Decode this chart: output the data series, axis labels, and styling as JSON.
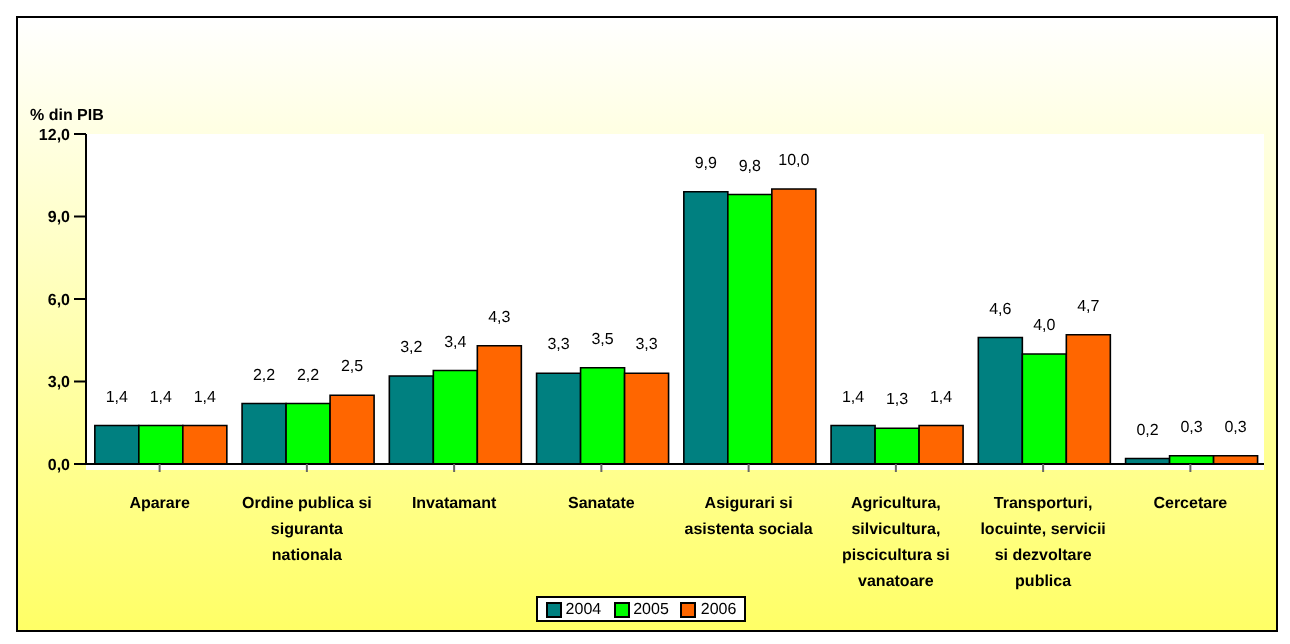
{
  "chart_data": {
    "type": "bar",
    "ylabel": "% din PIB",
    "categories": [
      "Aparare",
      "Ordine publica si siguranta nationala",
      "Invatamant",
      "Sanatate",
      "Asigurari si asistenta sociala",
      "Agricultura, silvicultura, piscicultura si vanatoare",
      "Transporturi, locuinte, servicii si dezvoltare publica",
      "Cercetare"
    ],
    "series": [
      {
        "name": "2004",
        "color": "#008080",
        "values": [
          1.4,
          2.2,
          3.2,
          3.3,
          9.9,
          1.4,
          4.6,
          0.2
        ],
        "value_labels": [
          "1,4",
          "2,2",
          "3,2",
          "3,3",
          "9,9",
          "1,4",
          "4,6",
          "0,2"
        ]
      },
      {
        "name": "2005",
        "color": "#00ff00",
        "values": [
          1.4,
          2.2,
          3.4,
          3.5,
          9.8,
          1.3,
          4.0,
          0.3
        ],
        "value_labels": [
          "1,4",
          "2,2",
          "3,4",
          "3,5",
          "9,8",
          "1,3",
          "4,0",
          "0,3"
        ]
      },
      {
        "name": "2006",
        "color": "#ff6600",
        "values": [
          1.4,
          2.5,
          4.3,
          3.3,
          10.0,
          1.4,
          4.7,
          0.3
        ],
        "value_labels": [
          "1,4",
          "2,5",
          "4,3",
          "3,3",
          "10,0",
          "1,4",
          "4,7",
          "0,3"
        ]
      }
    ],
    "ylim": [
      0,
      12
    ],
    "yticks": [
      {
        "value": 0,
        "label": "0,0"
      },
      {
        "value": 3,
        "label": "3,0"
      },
      {
        "value": 6,
        "label": "6,0"
      },
      {
        "value": 9,
        "label": "9,0"
      },
      {
        "value": 12,
        "label": "12,0"
      }
    ],
    "grid": false,
    "legend": "bottom"
  }
}
